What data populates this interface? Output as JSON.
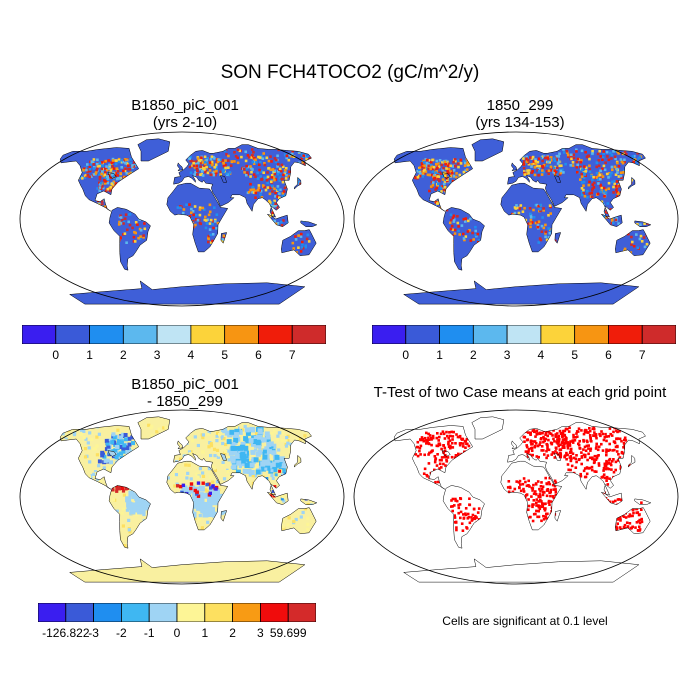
{
  "title": "SON FCH4TOCO2 (gC/m^2/y)",
  "panels": [
    {
      "id": "p1",
      "title_line1": "B1850_piC_001",
      "title_line2": "(yrs 2-10)"
    },
    {
      "id": "p2",
      "title_line1": "1850_299",
      "title_line2": "(yrs 134-153)"
    },
    {
      "id": "p3",
      "title_line1": "B1850_piC_001",
      "title_line2": "- 1850_299"
    },
    {
      "id": "p4",
      "title_line1": "T-Test of two Case means at each grid point",
      "title_line2": ""
    }
  ],
  "colorbar_top": {
    "colors": [
      "#3a1ef0",
      "#3a5ad8",
      "#1f8ef0",
      "#5cb8ee",
      "#bfe4f4",
      "#fcd33a",
      "#f79512",
      "#f01d0a",
      "#cf2b2b"
    ],
    "labels": [
      "0",
      "1",
      "2",
      "3",
      "4",
      "5",
      "6",
      "7"
    ]
  },
  "colorbar_diff": {
    "colors": [
      "#3a1ef0",
      "#3a5ad8",
      "#1f8ef0",
      "#3fb7f2",
      "#9fd4f4",
      "#fdf596",
      "#fde060",
      "#f89b14",
      "#f00c0c",
      "#d42a2a"
    ],
    "labels": [
      "-126.822",
      "-3",
      "-2",
      "-1",
      "0",
      "1",
      "2",
      "3",
      "59.699"
    ]
  },
  "map_colors": {
    "ocean": "#ffffff",
    "land_top": "#3f5fd8",
    "land_diff": "#f9f0a0",
    "land_diff_alt": "#a9d3ee",
    "sig": "#ff0000"
  },
  "note": "Cells are significant at 0.1 level"
}
